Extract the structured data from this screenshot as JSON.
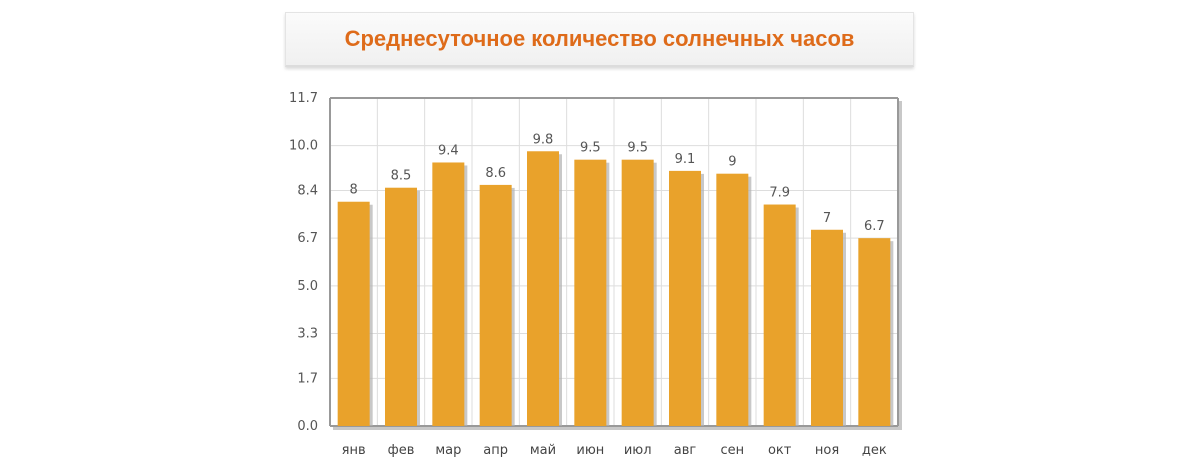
{
  "chart_data": {
    "type": "bar",
    "title": "Среднесуточное количество солнечных часов",
    "categories": [
      "янв",
      "фев",
      "мар",
      "апр",
      "май",
      "июн",
      "июл",
      "авг",
      "сен",
      "окт",
      "ноя",
      "дек"
    ],
    "values": [
      8,
      8.5,
      9.4,
      8.6,
      9.8,
      9.5,
      9.5,
      9.1,
      9,
      7.9,
      7,
      6.7
    ],
    "data_labels": [
      "8",
      "8.5",
      "9.4",
      "8.6",
      "9.8",
      "9.5",
      "9.5",
      "9.1",
      "9",
      "7.9",
      "7",
      "6.7"
    ],
    "y_ticks": [
      "0.0",
      "1.7",
      "3.3",
      "5.0",
      "6.7",
      "8.4",
      "10.0",
      "11.7"
    ],
    "ylim": [
      0,
      11.7
    ],
    "grid": true,
    "xlabel": "",
    "ylabel": "",
    "colors": {
      "bar": "#e9a22b",
      "bar_shadow": "#b0b0b0",
      "grid": "#dddddd",
      "title": "#de6b1a"
    }
  }
}
